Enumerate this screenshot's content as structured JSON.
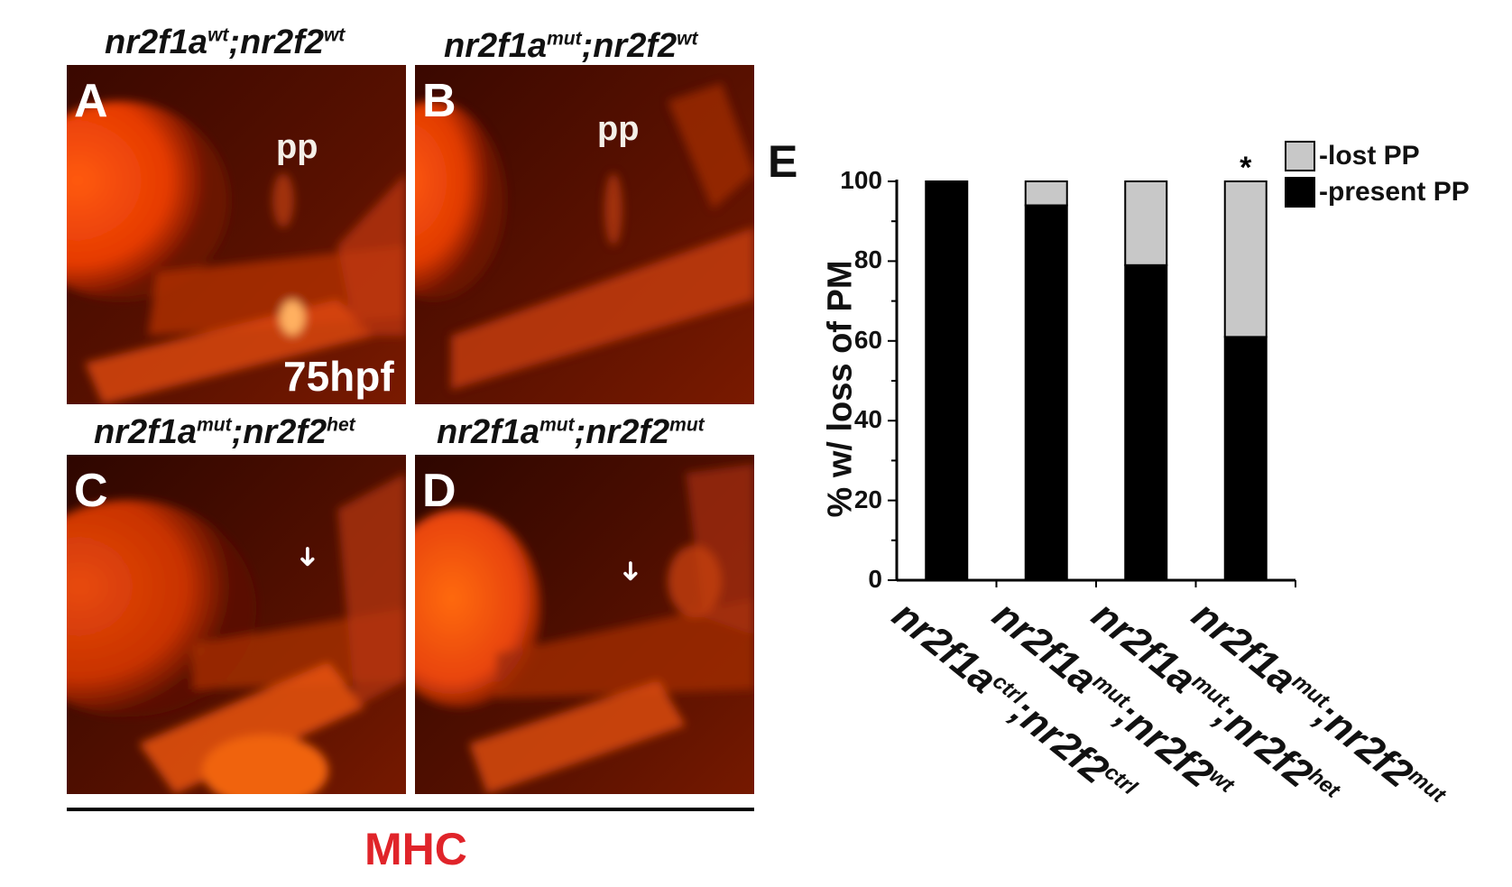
{
  "panels": [
    {
      "letter": "A",
      "title_base1": "nr2f1a",
      "title_sup1": "wt",
      "title_sep": ";",
      "title_base2": "nr2f2",
      "title_sup2": "wt",
      "annotation": "pp",
      "stage": "75hpf"
    },
    {
      "letter": "B",
      "title_base1": "nr2f1a",
      "title_sup1": "mut",
      "title_sep": ";",
      "title_base2": "nr2f2",
      "title_sup2": "wt",
      "annotation": "pp"
    },
    {
      "letter": "C",
      "title_base1": "nr2f1a",
      "title_sup1": "mut",
      "title_sep": ";",
      "title_base2": "nr2f2",
      "title_sup2": "het",
      "arrow": "➜"
    },
    {
      "letter": "D",
      "title_base1": "nr2f1a",
      "title_sup1": "mut",
      "title_sep": ";",
      "title_base2": "nr2f2",
      "title_sup2": "mut",
      "arrow": "➜"
    }
  ],
  "stain_label": "MHC",
  "colors": {
    "stain": "#e0242a",
    "lost": "#c8c8c8",
    "present": "#000000"
  },
  "chart_data": {
    "type": "bar",
    "stacked": true,
    "panel_letter": "E",
    "ylabel": "% w/ loss of PM",
    "ylim": [
      0,
      100
    ],
    "yticks": [
      "0",
      "20",
      "40",
      "60",
      "80",
      "100"
    ],
    "categories": [
      {
        "base1": "nr2f1a",
        "sup1": "ctrl",
        "sep": ";",
        "base2": "nr2f2",
        "sup2": "ctrl"
      },
      {
        "base1": "nr2f1a",
        "sup1": "mut",
        "sep": ";",
        "base2": "nr2f2",
        "sup2": "wt"
      },
      {
        "base1": "nr2f1a",
        "sup1": "mut",
        "sep": ";",
        "base2": "nr2f2",
        "sup2": "het"
      },
      {
        "base1": "nr2f1a",
        "sup1": "mut",
        "sep": ";",
        "base2": "nr2f2",
        "sup2": "mut"
      }
    ],
    "series": [
      {
        "name": "-present PP",
        "color": "#000000",
        "values": [
          100,
          94,
          79,
          61
        ]
      },
      {
        "name": "-lost PP",
        "color": "#c8c8c8",
        "values": [
          0,
          6,
          21,
          39
        ]
      }
    ],
    "significance": [
      "",
      "",
      "",
      "*"
    ],
    "legend_position": "top-right"
  }
}
